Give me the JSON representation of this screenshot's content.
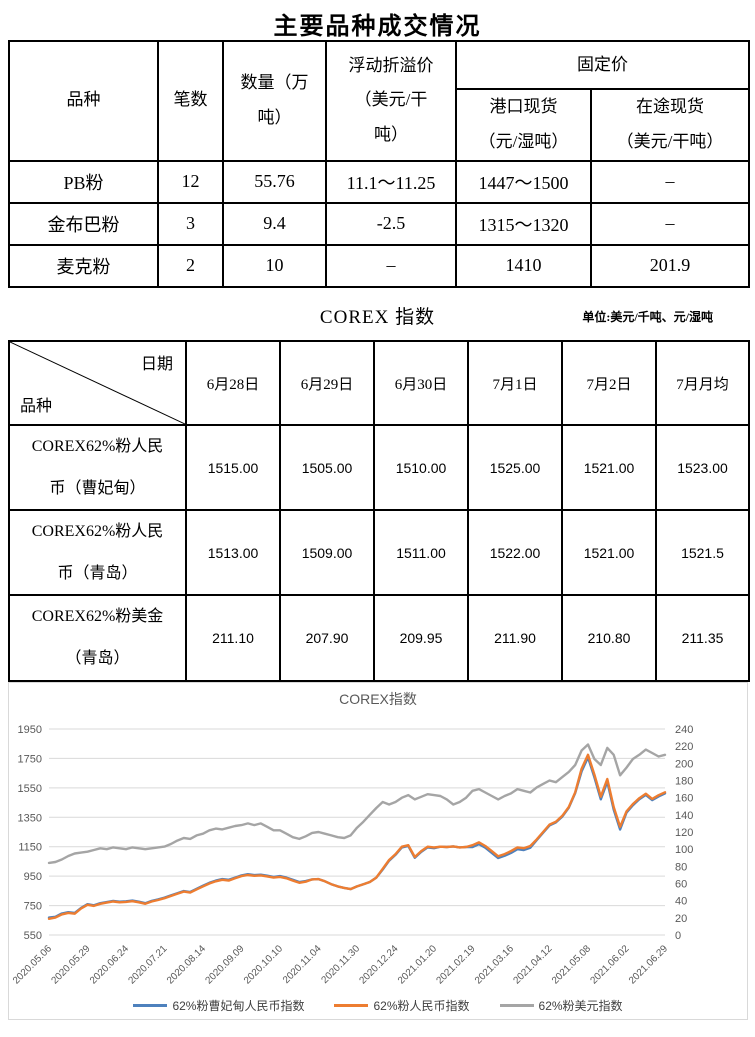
{
  "page": {
    "title": "主要品种成交情况"
  },
  "table1": {
    "headers": {
      "variety": "品种",
      "count": "笔数",
      "quantity": "数量（万\n吨）",
      "premium": "浮动折溢价\n（美元/干\n吨）",
      "fixed_price": "固定价",
      "port_spot": "港口现货\n（元/湿吨）",
      "transit_spot": "在途现货\n（美元/干吨）"
    },
    "rows": [
      {
        "variety": "PB粉",
        "count": "12",
        "quantity": "55.76",
        "premium": "11.1～11.25",
        "port_spot": "1447～1500",
        "transit_spot": "–"
      },
      {
        "variety": "金布巴粉",
        "count": "3",
        "quantity": "9.4",
        "premium": "-2.5",
        "port_spot": "1315～1320",
        "transit_spot": "–"
      },
      {
        "variety": "麦克粉",
        "count": "2",
        "quantity": "10",
        "premium": "–",
        "port_spot": "1410",
        "transit_spot": "201.9"
      }
    ]
  },
  "section2": {
    "title": "COREX 指数",
    "unit_note": "单位:美元/千吨、元/湿吨"
  },
  "table2": {
    "corner_top": "日期",
    "corner_bottom": "品种",
    "columns": [
      "6月28日",
      "6月29日",
      "6月30日",
      "7月1日",
      "7月2日",
      "7月月均"
    ],
    "rows": [
      {
        "label": "COREX62%粉人民\n币（曹妃甸）",
        "values": [
          "1515.00",
          "1505.00",
          "1510.00",
          "1525.00",
          "1521.00",
          "1523.00"
        ]
      },
      {
        "label": "COREX62%粉人民\n币（青岛）",
        "values": [
          "1513.00",
          "1509.00",
          "1511.00",
          "1522.00",
          "1521.00",
          "1521.5"
        ]
      },
      {
        "label": "COREX62%粉美金\n（青岛）",
        "values": [
          "211.10",
          "207.90",
          "209.95",
          "211.90",
          "210.80",
          "211.35"
        ]
      }
    ]
  },
  "chart_data": {
    "type": "line",
    "title": "COREX指数",
    "grid": true,
    "legend_position": "bottom",
    "left_axis": {
      "min": 550,
      "max": 1950,
      "ticks": [
        1950,
        1750,
        1550,
        1350,
        1150,
        950,
        750,
        550
      ]
    },
    "right_axis": {
      "min": 0,
      "max": 240,
      "ticks": [
        240,
        220,
        200,
        180,
        160,
        140,
        120,
        100,
        80,
        60,
        40,
        20,
        0
      ]
    },
    "x_labels": [
      "2020.05.06",
      "2020.05.29",
      "2020.06.24",
      "2020.07.21",
      "2020.08.14",
      "2020.09.09",
      "2020.10.10",
      "2020.11.04",
      "2020.11.30",
      "2020.12.24",
      "2021.01.20",
      "2021.02.19",
      "2021.03.16",
      "2021.04.12",
      "2021.05.08",
      "2021.06.02",
      "2021.06.29"
    ],
    "x_label_every": 6,
    "series": [
      {
        "name": "62%粉曹妃甸人民币指数",
        "color": "#4E81BD",
        "axis": "left",
        "values": [
          668,
          674,
          696,
          705,
          700,
          734,
          759,
          752,
          766,
          774,
          782,
          776,
          779,
          784,
          776,
          766,
          782,
          792,
          804,
          819,
          834,
          849,
          842,
          864,
          885,
          905,
          920,
          930,
          925,
          940,
          955,
          963,
          957,
          960,
          953,
          945,
          950,
          940,
          925,
          910,
          917,
          928,
          930,
          915,
          895,
          880,
          870,
          862,
          880,
          895,
          910,
          940,
          995,
          1055,
          1095,
          1145,
          1155,
          1075,
          1115,
          1145,
          1140,
          1150,
          1148,
          1152,
          1145,
          1148,
          1148,
          1168,
          1143,
          1108,
          1073,
          1088,
          1108,
          1133,
          1128,
          1143,
          1195,
          1245,
          1295,
          1315,
          1355,
          1415,
          1515,
          1662,
          1757,
          1622,
          1472,
          1592,
          1402,
          1267,
          1382,
          1432,
          1472,
          1502,
          1467,
          1492,
          1512
        ]
      },
      {
        "name": "62%粉人民币指数",
        "color": "#ED7D31",
        "axis": "left",
        "values": [
          660,
          668,
          690,
          700,
          695,
          730,
          755,
          748,
          762,
          770,
          778,
          772,
          775,
          780,
          772,
          762,
          778,
          788,
          800,
          815,
          830,
          845,
          838,
          860,
          880,
          900,
          915,
          925,
          920,
          935,
          950,
          958,
          952,
          955,
          948,
          940,
          945,
          935,
          920,
          905,
          912,
          928,
          930,
          915,
          895,
          880,
          870,
          862,
          880,
          895,
          910,
          940,
          1000,
          1060,
          1100,
          1150,
          1160,
          1080,
          1120,
          1150,
          1145,
          1150,
          1148,
          1152,
          1145,
          1148,
          1160,
          1180,
          1155,
          1120,
          1085,
          1100,
          1120,
          1145,
          1140,
          1155,
          1200,
          1250,
          1300,
          1320,
          1360,
          1420,
          1520,
          1680,
          1775,
          1640,
          1490,
          1610,
          1420,
          1285,
          1390,
          1440,
          1480,
          1510,
          1475,
          1500,
          1520
        ]
      },
      {
        "name": "62%粉美元指数",
        "color": "#A5A5A5",
        "axis": "right",
        "values": [
          84,
          85,
          88,
          92,
          95,
          96,
          97,
          99,
          101,
          100,
          102,
          101,
          100,
          102,
          101,
          100,
          101,
          102,
          103,
          106,
          110,
          113,
          112,
          116,
          118,
          122,
          124,
          123,
          125,
          127,
          128,
          130,
          128,
          130,
          126,
          122,
          122,
          118,
          114,
          112,
          115,
          119,
          120,
          118,
          116,
          114,
          113,
          116,
          125,
          132,
          140,
          148,
          155,
          152,
          155,
          160,
          163,
          158,
          161,
          164,
          163,
          162,
          158,
          152,
          155,
          160,
          168,
          170,
          166,
          162,
          158,
          162,
          165,
          170,
          168,
          166,
          172,
          176,
          180,
          178,
          184,
          190,
          198,
          215,
          222,
          205,
          198,
          218,
          210,
          186,
          195,
          205,
          210,
          216,
          212,
          208,
          210
        ]
      }
    ]
  }
}
